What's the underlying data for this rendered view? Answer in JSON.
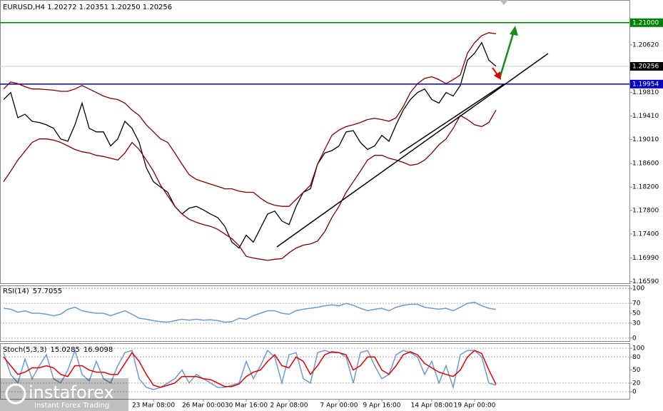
{
  "header": "EURUSD,H4  1.20272 1.20351 1.20250 1.20256",
  "logo": {
    "name": "instaforex",
    "tagline": "Instant Forex Trading"
  },
  "chart_data": [
    {
      "type": "line",
      "top": 3,
      "bottom": 397,
      "xlim": [
        -0.5,
        87.7
      ],
      "ylim": [
        1.1656,
        1.2135
      ],
      "grid": false,
      "yticks": [
        {
          "value": 1.2062,
          "label": "1.20620"
        },
        {
          "value": 1.1981,
          "label": "1.19810"
        },
        {
          "value": 1.1941,
          "label": "1.19410"
        },
        {
          "value": 1.1901,
          "label": "1.19010"
        },
        {
          "value": 1.186,
          "label": "1.18600"
        },
        {
          "value": 1.182,
          "label": "1.18200"
        },
        {
          "value": 1.178,
          "label": "1.17800"
        },
        {
          "value": 1.174,
          "label": "1.17400"
        },
        {
          "value": 1.1699,
          "label": "1.16990"
        },
        {
          "value": 1.1659,
          "label": "1.16590"
        }
      ],
      "levels": [
        {
          "value": 1.21,
          "label": "1.21000",
          "color": "#008000"
        },
        {
          "value": 1.20256,
          "label": "1.20256",
          "color": "#000000"
        },
        {
          "value": 1.19954,
          "label": "1.19954",
          "color": "#0000c0"
        }
      ],
      "series": [
        {
          "color": "#000000",
          "values": [
            1.1969,
            1.1981,
            1.1938,
            1.1944,
            1.1932,
            1.193,
            1.1926,
            1.192,
            1.1902,
            1.1898,
            1.1926,
            1.1963,
            1.192,
            1.1914,
            1.1914,
            1.189,
            1.1902,
            1.1932,
            1.192,
            1.1896,
            1.1853,
            1.1829,
            1.182,
            1.1811,
            1.1787,
            1.1774,
            1.1784,
            1.1787,
            1.1781,
            1.1774,
            1.1768,
            1.1753,
            1.1726,
            1.1716,
            1.1738,
            1.1726,
            1.175,
            1.1774,
            1.1779,
            1.1762,
            1.1756,
            1.1787,
            1.1811,
            1.1817,
            1.1859,
            1.1878,
            1.1882,
            1.189,
            1.1914,
            1.1916,
            1.1896,
            1.1884,
            1.189,
            1.1908,
            1.1898,
            1.1926,
            1.1951,
            1.1969,
            1.1981,
            1.1987,
            1.1969,
            1.1963,
            1.1981,
            1.1975,
            1.1993,
            1.2036,
            1.2048,
            1.2066,
            1.2036,
            1.2026
          ]
        },
        {
          "color": "#800000",
          "values": [
            1.1987,
            1.1999,
            1.1996,
            1.1991,
            1.1987,
            1.1987,
            1.1986,
            1.1985,
            1.1983,
            1.1983,
            1.1987,
            1.1993,
            1.1987,
            1.1981,
            1.1975,
            1.1971,
            1.1969,
            1.1963,
            1.1951,
            1.1942,
            1.1926,
            1.1914,
            1.1902,
            1.1896,
            1.1878,
            1.1859,
            1.1841,
            1.1833,
            1.1829,
            1.1825,
            1.1821,
            1.1817,
            1.1817,
            1.1813,
            1.1811,
            1.1811,
            1.1801,
            1.1793,
            1.1789,
            1.1787,
            1.1787,
            1.1799,
            1.1811,
            1.1823,
            1.1859,
            1.1884,
            1.1908,
            1.1917,
            1.1923,
            1.1926,
            1.193,
            1.1935,
            1.1937,
            1.1935,
            1.1932,
            1.1938,
            1.1957,
            1.1981,
            1.1996,
            1.2005,
            1.2008,
            1.2003,
            1.1996,
            1.2003,
            1.2011,
            1.2048,
            1.2066,
            1.2078,
            1.2083,
            1.2081
          ]
        },
        {
          "color": "#800000",
          "values": [
            1.1829,
            1.1847,
            1.1866,
            1.1881,
            1.1896,
            1.1902,
            1.1902,
            1.19,
            1.1896,
            1.189,
            1.1884,
            1.188,
            1.1878,
            1.1874,
            1.1872,
            1.1869,
            1.1866,
            1.1878,
            1.1896,
            1.1884,
            1.1866,
            1.1847,
            1.1823,
            1.1805,
            1.1787,
            1.1774,
            1.1765,
            1.176,
            1.1756,
            1.1753,
            1.1748,
            1.174,
            1.1732,
            1.172,
            1.1702,
            1.1699,
            1.1697,
            1.1695,
            1.1697,
            1.1698,
            1.1708,
            1.1716,
            1.1721,
            1.1723,
            1.1728,
            1.1744,
            1.1768,
            1.1787,
            1.1811,
            1.1829,
            1.1847,
            1.1866,
            1.1874,
            1.1874,
            1.1869,
            1.1866,
            1.1862,
            1.1857,
            1.1859,
            1.1866,
            1.1878,
            1.1892,
            1.1902,
            1.192,
            1.1942,
            1.1935,
            1.1926,
            1.1923,
            1.193,
            1.1951
          ]
        }
      ]
    },
    {
      "type": "line",
      "title": "RSI(14)",
      "top": 400,
      "bottom": 478,
      "xlim": [
        -0.5,
        87.7
      ],
      "ylim": [
        -6,
        106
      ],
      "yticks": [
        100,
        70,
        50,
        30,
        0
      ],
      "series": [
        {
          "color": "#6b9bd1",
          "values": [
            60,
            58,
            52,
            55,
            50,
            50,
            48,
            45,
            48,
            58,
            62,
            55,
            52,
            50,
            50,
            45,
            50,
            55,
            48,
            40,
            38,
            35,
            33,
            32,
            35,
            38,
            36,
            38,
            36,
            37,
            35,
            32,
            33,
            40,
            38,
            45,
            50,
            55,
            55,
            50,
            48,
            55,
            58,
            60,
            62,
            65,
            67,
            65,
            70,
            66,
            60,
            55,
            58,
            60,
            55,
            62,
            66,
            68,
            68,
            62,
            60,
            58,
            60,
            55,
            62,
            70,
            72,
            65,
            60,
            57.7055
          ]
        }
      ]
    },
    {
      "type": "line",
      "title": "Stoch(5,3,3)",
      "top": 482,
      "bottom": 560,
      "xlim": [
        -0.5,
        87.7
      ],
      "ylim": [
        -18,
        110
      ],
      "yticks": [
        100,
        80,
        50,
        20,
        0
      ],
      "xticks": [
        {
          "value": 21,
          "label": "23 Mar 08:00"
        },
        {
          "value": 28,
          "label": "26 Mar 00:00"
        },
        {
          "value": 34,
          "label": "30 Mar 16:00"
        },
        {
          "value": 40,
          "label": "2 Apr 08:00"
        },
        {
          "value": 47,
          "label": "7 Apr 00:00"
        },
        {
          "value": 53,
          "label": "9 Apr 16:00"
        },
        {
          "value": 60,
          "label": "14 Apr 08:00"
        },
        {
          "value": 66,
          "label": "19 Apr 00:00"
        }
      ],
      "series": [
        {
          "color": "#6b9bd1",
          "values": [
            90,
            40,
            20,
            75,
            30,
            60,
            85,
            30,
            20,
            50,
            95,
            40,
            25,
            70,
            30,
            20,
            60,
            90,
            95,
            30,
            10,
            5,
            10,
            20,
            30,
            50,
            20,
            40,
            30,
            20,
            10,
            10,
            15,
            20,
            70,
            30,
            60,
            95,
            80,
            20,
            85,
            90,
            30,
            20,
            90,
            95,
            90,
            90,
            80,
            20,
            90,
            95,
            60,
            30,
            40,
            85,
            95,
            90,
            80,
            40,
            70,
            20,
            60,
            10,
            85,
            95,
            95,
            80,
            20,
            15.0285
          ]
        },
        {
          "color": "#e00000",
          "values": [
            80,
            60,
            40,
            45,
            55,
            55,
            60,
            55,
            40,
            35,
            60,
            60,
            50,
            45,
            45,
            40,
            40,
            65,
            90,
            70,
            40,
            15,
            10,
            15,
            20,
            35,
            35,
            35,
            30,
            28,
            20,
            12,
            12,
            18,
            35,
            45,
            50,
            70,
            85,
            60,
            55,
            80,
            70,
            40,
            60,
            85,
            92,
            90,
            85,
            50,
            60,
            80,
            80,
            50,
            40,
            60,
            85,
            92,
            85,
            65,
            55,
            45,
            40,
            35,
            50,
            80,
            95,
            88,
            50,
            16.9098
          ]
        }
      ]
    }
  ]
}
